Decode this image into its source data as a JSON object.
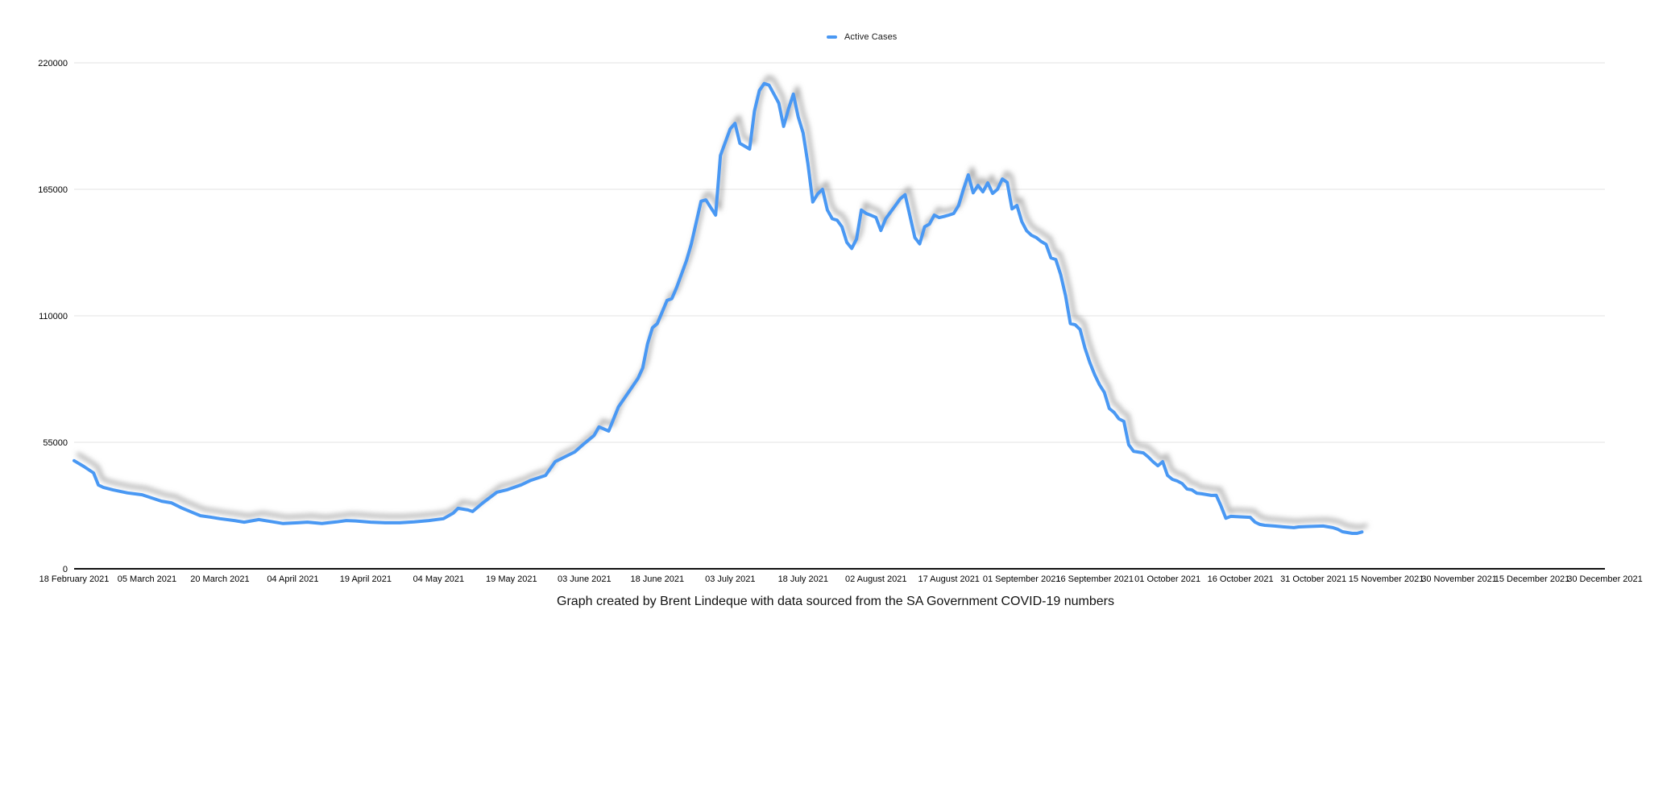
{
  "legend": {
    "label": "Active Cases"
  },
  "caption": {
    "text": "Graph created by Brent Lindeque with data sourced from the SA Government COVID-19 numbers"
  },
  "colors": {
    "line": "#4a98f3",
    "grid": "#e3e3e3",
    "axis": "#111111",
    "tick_label": "#000000",
    "shadow": "#8a8a8a"
  },
  "chart_data": {
    "type": "line",
    "title": "",
    "xlabel": "",
    "ylabel": "",
    "grid": "horizontal",
    "legend_position": "top-center",
    "ylim": [
      0,
      220000
    ],
    "y_ticks": [
      0,
      55000,
      110000,
      165000,
      220000
    ],
    "x_tick_interval_days": 15,
    "x_tick_labels": [
      "18 February 2021",
      "05 March 2021",
      "20 March 2021",
      "04 April 2021",
      "19 April 2021",
      "04 May 2021",
      "19 May 2021",
      "03 June 2021",
      "18 June 2021",
      "03 July 2021",
      "18 July 2021",
      "02 August 2021",
      "17 August 2021",
      "01 September 2021",
      "16 September 2021",
      "01 October 2021",
      "16 October 2021",
      "31 October 2021",
      "15 November 2021",
      "30 November 2021",
      "15 December 2021",
      "30 December 2021"
    ],
    "series": [
      {
        "name": "Active Cases",
        "x_unit": "days since 18 February 2021",
        "points": [
          [
            0,
            47000
          ],
          [
            2,
            44500
          ],
          [
            4,
            41700
          ],
          [
            5,
            36400
          ],
          [
            6,
            35400
          ],
          [
            8,
            34300
          ],
          [
            11,
            33000
          ],
          [
            14,
            32200
          ],
          [
            16,
            30800
          ],
          [
            18,
            29400
          ],
          [
            20,
            28700
          ],
          [
            22,
            26600
          ],
          [
            24,
            24800
          ],
          [
            26,
            23100
          ],
          [
            28,
            22500
          ],
          [
            30,
            21800
          ],
          [
            33,
            21000
          ],
          [
            35,
            20300
          ],
          [
            38,
            21400
          ],
          [
            41,
            20400
          ],
          [
            43,
            19700
          ],
          [
            46,
            20000
          ],
          [
            48,
            20300
          ],
          [
            51,
            19700
          ],
          [
            54,
            20400
          ],
          [
            56,
            21000
          ],
          [
            58,
            20800
          ],
          [
            61,
            20300
          ],
          [
            64,
            20000
          ],
          [
            67,
            20000
          ],
          [
            70,
            20400
          ],
          [
            73,
            21000
          ],
          [
            76,
            21800
          ],
          [
            78,
            24200
          ],
          [
            79,
            26300
          ],
          [
            81,
            25600
          ],
          [
            82,
            24900
          ],
          [
            84,
            28500
          ],
          [
            87,
            33300
          ],
          [
            89,
            34300
          ],
          [
            92,
            36500
          ],
          [
            94,
            38500
          ],
          [
            97,
            40600
          ],
          [
            99,
            46600
          ],
          [
            101,
            48700
          ],
          [
            103,
            50800
          ],
          [
            105,
            54500
          ],
          [
            107,
            58000
          ],
          [
            108,
            61700
          ],
          [
            110,
            59900
          ],
          [
            112,
            70400
          ],
          [
            114,
            76500
          ],
          [
            116,
            82700
          ],
          [
            117,
            87300
          ],
          [
            118,
            97800
          ],
          [
            119,
            104800
          ],
          [
            120,
            106600
          ],
          [
            122,
            116700
          ],
          [
            123,
            117500
          ],
          [
            124,
            122400
          ],
          [
            126,
            134000
          ],
          [
            127,
            141200
          ],
          [
            129,
            159800
          ],
          [
            130,
            160400
          ],
          [
            132,
            153800
          ],
          [
            133,
            179700
          ],
          [
            135,
            191300
          ],
          [
            136,
            193700
          ],
          [
            137,
            185000
          ],
          [
            139,
            182500
          ],
          [
            140,
            199000
          ],
          [
            141,
            208000
          ],
          [
            142,
            211000
          ],
          [
            143,
            210300
          ],
          [
            144,
            206400
          ],
          [
            145,
            202500
          ],
          [
            146,
            192400
          ],
          [
            147,
            200000
          ],
          [
            148,
            206400
          ],
          [
            149,
            196500
          ],
          [
            150,
            189500
          ],
          [
            151,
            176000
          ],
          [
            152,
            159500
          ],
          [
            153,
            163000
          ],
          [
            154,
            165000
          ],
          [
            155,
            156000
          ],
          [
            156,
            152200
          ],
          [
            157,
            151600
          ],
          [
            158,
            148700
          ],
          [
            159,
            142000
          ],
          [
            160,
            139300
          ],
          [
            161,
            143400
          ],
          [
            162,
            156000
          ],
          [
            163,
            154500
          ],
          [
            164,
            153700
          ],
          [
            165,
            152800
          ],
          [
            166,
            147100
          ],
          [
            167,
            152200
          ],
          [
            168,
            155100
          ],
          [
            169,
            158000
          ],
          [
            170,
            160900
          ],
          [
            171,
            162700
          ],
          [
            172,
            153300
          ],
          [
            173,
            144000
          ],
          [
            174,
            141300
          ],
          [
            175,
            148700
          ],
          [
            176,
            149900
          ],
          [
            177,
            153800
          ],
          [
            178,
            152700
          ],
          [
            179,
            153200
          ],
          [
            180,
            153800
          ],
          [
            181,
            154500
          ],
          [
            182,
            158000
          ],
          [
            183,
            165000
          ],
          [
            184,
            171300
          ],
          [
            185,
            163500
          ],
          [
            186,
            166700
          ],
          [
            187,
            163900
          ],
          [
            188,
            167800
          ],
          [
            189,
            163200
          ],
          [
            190,
            165000
          ],
          [
            191,
            169500
          ],
          [
            192,
            168000
          ],
          [
            193,
            156500
          ],
          [
            194,
            158000
          ],
          [
            195,
            151000
          ],
          [
            196,
            147000
          ],
          [
            197,
            145000
          ],
          [
            198,
            144000
          ],
          [
            199,
            142300
          ],
          [
            200,
            141100
          ],
          [
            201,
            135200
          ],
          [
            202,
            134500
          ],
          [
            203,
            128000
          ],
          [
            204,
            118800
          ],
          [
            205,
            106600
          ],
          [
            206,
            106100
          ],
          [
            207,
            104000
          ],
          [
            208,
            96000
          ],
          [
            209,
            89700
          ],
          [
            210,
            84400
          ],
          [
            211,
            80000
          ],
          [
            212,
            76700
          ],
          [
            213,
            69700
          ],
          [
            214,
            68000
          ],
          [
            215,
            65200
          ],
          [
            216,
            64100
          ],
          [
            217,
            54000
          ],
          [
            218,
            51100
          ],
          [
            220,
            50400
          ],
          [
            221,
            48700
          ],
          [
            222,
            46600
          ],
          [
            223,
            44800
          ],
          [
            224,
            46600
          ],
          [
            225,
            40600
          ],
          [
            226,
            38900
          ],
          [
            227,
            38200
          ],
          [
            228,
            37100
          ],
          [
            229,
            34700
          ],
          [
            230,
            34300
          ],
          [
            231,
            32900
          ],
          [
            232,
            32600
          ],
          [
            234,
            31900
          ],
          [
            235,
            32000
          ],
          [
            236,
            27300
          ],
          [
            237,
            22000
          ],
          [
            238,
            22800
          ],
          [
            242,
            22400
          ],
          [
            243,
            20300
          ],
          [
            244,
            19300
          ],
          [
            245,
            18900
          ],
          [
            247,
            18600
          ],
          [
            249,
            18200
          ],
          [
            251,
            17900
          ],
          [
            252,
            18200
          ],
          [
            254,
            18400
          ],
          [
            257,
            18600
          ],
          [
            259,
            17900
          ],
          [
            260,
            17200
          ],
          [
            261,
            16100
          ],
          [
            263,
            15400
          ],
          [
            264,
            15400
          ],
          [
            265,
            16000
          ]
        ]
      }
    ]
  }
}
